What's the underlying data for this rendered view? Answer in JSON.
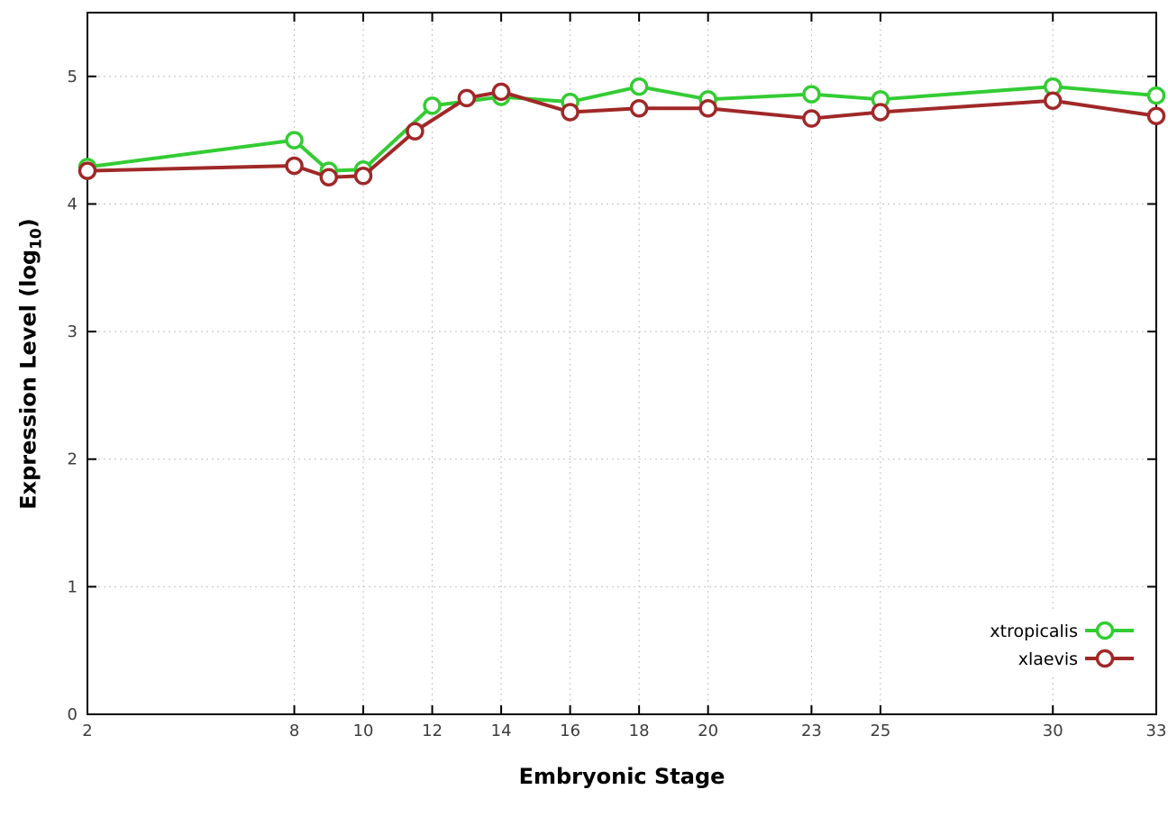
{
  "figure": {
    "background_color": "#ffffff",
    "grid_color": "#bfbfbf",
    "border_color": "#000000"
  },
  "chart_data": {
    "type": "line",
    "title": "",
    "xlabel": "Embryonic Stage",
    "ylabel": "Expression Level (log10)",
    "ylabel_parts": {
      "prefix": "Expression Level (log",
      "sub": "10",
      "suffix": ")"
    },
    "xlim": [
      2,
      33
    ],
    "ylim": [
      0,
      5.5
    ],
    "xticks": [
      2,
      8,
      10,
      12,
      14,
      16,
      18,
      20,
      23,
      25,
      30,
      33
    ],
    "yticks": [
      0,
      1,
      2,
      3,
      4,
      5
    ],
    "grid": true,
    "legend_position": "inside-right",
    "marker": "open-circle",
    "series": [
      {
        "name": "xtropicalis",
        "color": "#33cc33",
        "x": [
          2,
          8,
          9,
          10,
          12,
          14,
          16,
          18,
          20,
          23,
          25,
          30,
          33
        ],
        "values": [
          4.29,
          4.5,
          4.26,
          4.27,
          4.77,
          4.84,
          4.8,
          4.92,
          4.82,
          4.86,
          4.82,
          4.92,
          4.85
        ]
      },
      {
        "name": "xlaevis",
        "color": "#a02828",
        "x": [
          2,
          8,
          9,
          10,
          11.5,
          13,
          14,
          16,
          18,
          20,
          23,
          25,
          30,
          33
        ],
        "values": [
          4.26,
          4.3,
          4.21,
          4.22,
          4.57,
          4.83,
          4.88,
          4.72,
          4.75,
          4.75,
          4.67,
          4.72,
          4.81,
          4.69
        ]
      }
    ]
  }
}
